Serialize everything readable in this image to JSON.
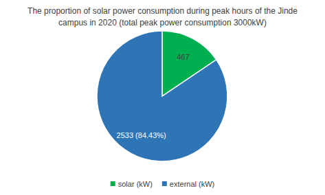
{
  "chart_data": {
    "type": "pie",
    "title": "The proportion of solar power consumption during peak hours of the Jinde campus in 2020 (total peak power consumption 3000kW)",
    "categories": [
      "solar (kW)",
      "external (kW)"
    ],
    "values": [
      467,
      2533
    ],
    "value_labels": [
      "467",
      "2533 (84.43%)"
    ],
    "colors": [
      "#00b050",
      "#2e75b6"
    ],
    "data_labels": true,
    "legend": "bottom"
  }
}
